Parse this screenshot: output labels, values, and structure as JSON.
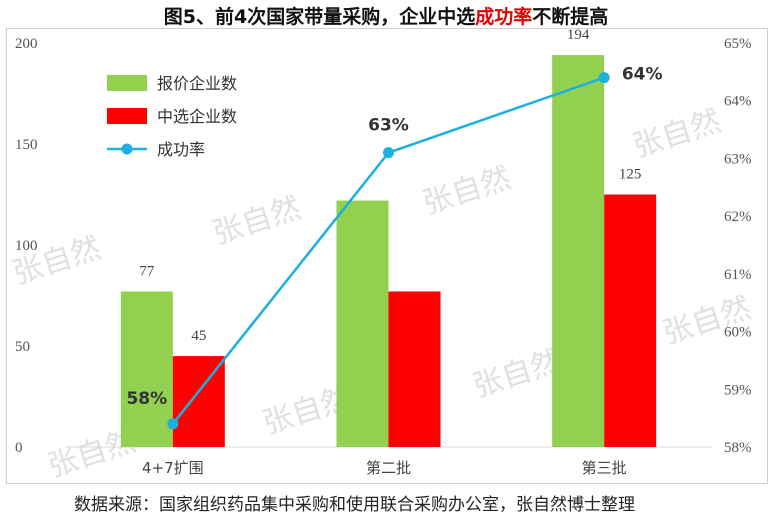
{
  "title": {
    "prefix": "图5、前4次国家带量采购，企业中选",
    "highlight": "成功率",
    "suffix": "不断提高"
  },
  "source": "数据来源：国家组织药品集中采购和使用联合采购办公室，张自然博士整理",
  "watermark": "张自然",
  "colors": {
    "bid": "#92d050",
    "win": "#ff0000",
    "rate": "#1cb0e0",
    "title_highlight": "#e00000"
  },
  "chart_data": {
    "type": "bar",
    "categories": [
      "4+7扩围",
      "第二批",
      "第三批"
    ],
    "series": [
      {
        "name": "报价企业数",
        "type": "bar",
        "axis": "left",
        "values": [
          77,
          122,
          194
        ],
        "labels": [
          "77",
          "",
          "194"
        ]
      },
      {
        "name": "中选企业数",
        "type": "bar",
        "axis": "left",
        "values": [
          45,
          77,
          125
        ],
        "labels": [
          "45",
          "",
          "125"
        ]
      },
      {
        "name": "成功率",
        "type": "line",
        "axis": "right",
        "values": [
          58.4,
          63.1,
          64.4
        ],
        "labels": [
          "58%",
          "63%",
          "64%"
        ]
      }
    ],
    "y_left": {
      "min": 0,
      "max": 200,
      "ticks": [
        0,
        50,
        100,
        150,
        200
      ]
    },
    "y_right": {
      "min": 58,
      "max": 65,
      "ticks": [
        "58%",
        "59%",
        "60%",
        "61%",
        "62%",
        "63%",
        "64%",
        "65%"
      ]
    },
    "legend_position": "top-left",
    "grid": false
  }
}
